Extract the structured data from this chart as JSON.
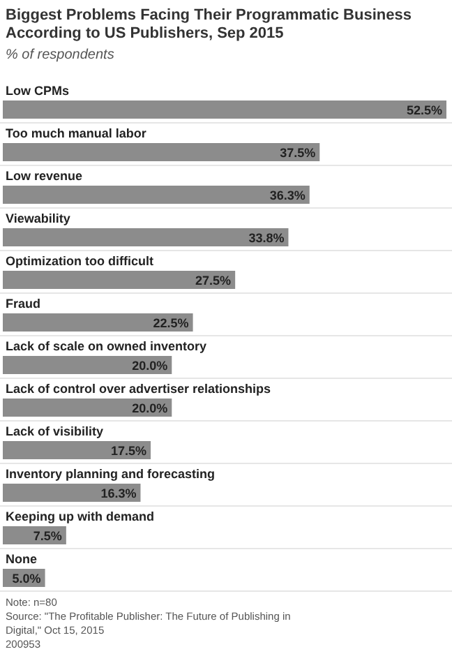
{
  "chart_data": {
    "type": "bar",
    "orientation": "horizontal",
    "title": "Biggest Problems Facing Their Programmatic Business According to US Publishers, Sep 2015",
    "subtitle": "% of respondents",
    "categories": [
      "Low CPMs",
      "Too much manual labor",
      "Low revenue",
      "Viewability",
      "Optimization too difficult",
      "Fraud",
      "Lack of scale on owned inventory",
      "Lack of control over advertiser relationships",
      "Lack of visibility",
      "Inventory planning and forecasting",
      "Keeping up with demand",
      "None"
    ],
    "values": [
      52.5,
      37.5,
      36.3,
      33.8,
      27.5,
      22.5,
      20.0,
      20.0,
      17.5,
      16.3,
      7.5,
      5.0
    ],
    "value_labels": [
      "52.5%",
      "37.5%",
      "36.3%",
      "33.8%",
      "27.5%",
      "22.5%",
      "20.0%",
      "20.0%",
      "17.5%",
      "16.3%",
      "7.5%",
      "5.0%"
    ],
    "color": "#8c8c8c",
    "annotations": [
      "Note: n=80",
      "Source: \"The Profitable Publisher: The Future of Publishing in Digital,\" Oct 15, 2015",
      "200953"
    ]
  }
}
